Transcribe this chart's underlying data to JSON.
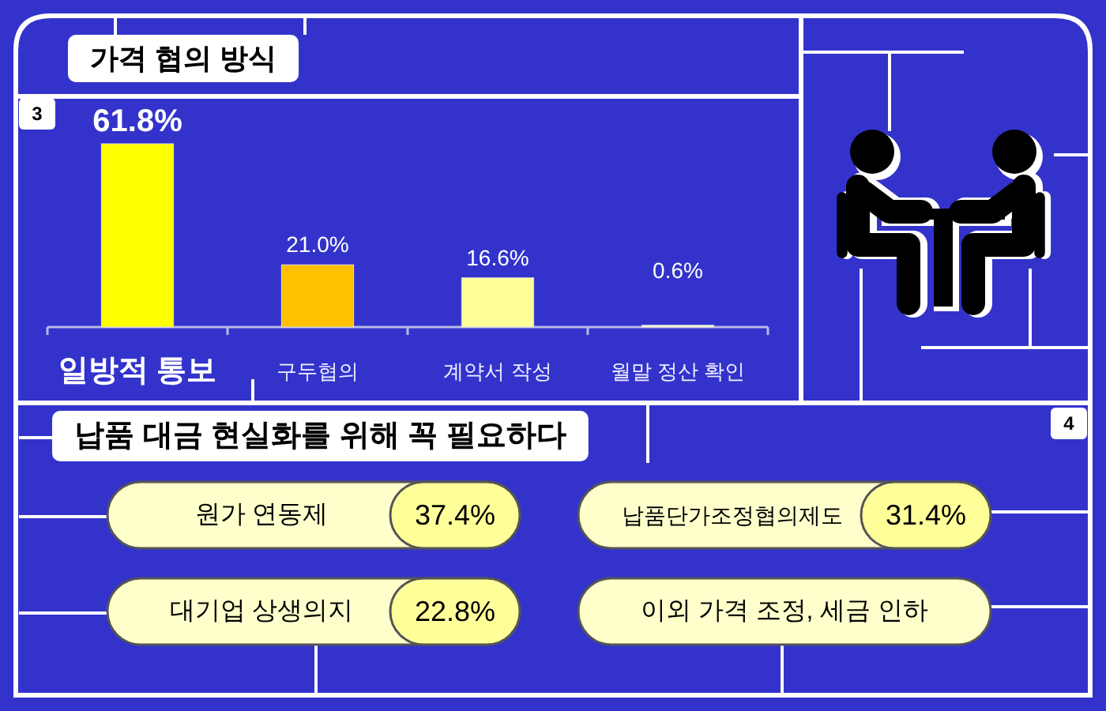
{
  "chart_data": [
    {
      "type": "bar",
      "title": "가격 협의 방식",
      "categories": [
        "일방적 통보",
        "구두협의",
        "계약서 작성",
        "월말 정산 확인"
      ],
      "values": [
        61.8,
        21.0,
        16.6,
        0.6
      ],
      "colors": [
        "#ffff00",
        "#ffc000",
        "#ffff99",
        "#ffffcc"
      ],
      "value_labels": [
        "61.8%",
        "21.0%",
        "16.6%",
        "0.6%"
      ],
      "annotations": [
        "3"
      ]
    },
    {
      "type": "other",
      "title": "납품 대금 현실화를 위해 꼭 필요하다",
      "categories": [
        "원가 연동제",
        "납품단가조정협의제도",
        "대기업 상생의지",
        "이외 가격 조정, 세금 인하"
      ],
      "values": [
        37.4,
        31.4,
        22.8,
        null
      ],
      "value_labels": [
        "37.4%",
        "31.4%",
        "22.8%",
        null
      ],
      "annotations": [
        "4"
      ]
    }
  ]
}
